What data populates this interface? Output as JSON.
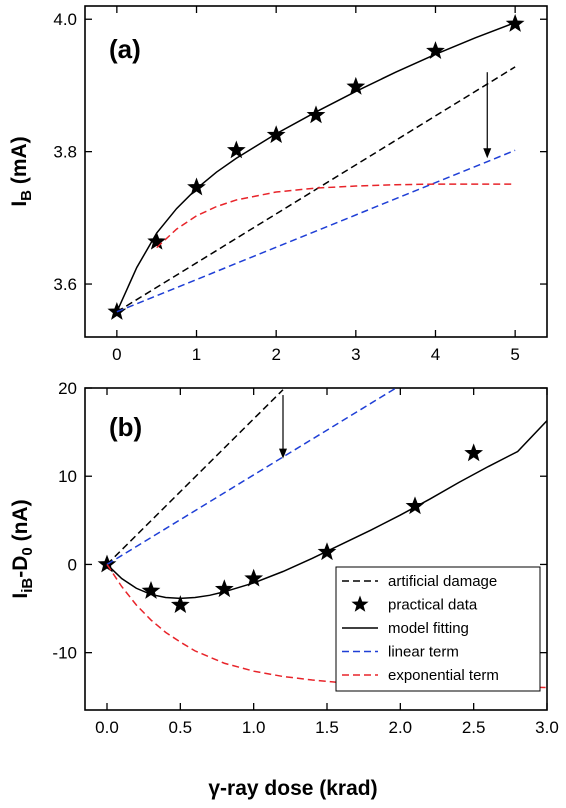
{
  "xlabel": "γ-ray dose (krad)",
  "chart_data": [
    {
      "type": "line",
      "panel": "(a)",
      "ylabel_main": "I",
      "ylabel_sub": "B",
      "ylabel_unit": " (mA)",
      "xlim": [
        -0.4,
        5.4
      ],
      "ylim": [
        3.52,
        4.02
      ],
      "x_ticks": [
        0,
        1,
        2,
        3,
        4,
        5
      ],
      "x_tick_labels": [
        "0",
        "1",
        "2",
        "3",
        "4",
        "5"
      ],
      "y_ticks": [
        3.6,
        3.8,
        4.0
      ],
      "y_tick_labels": [
        "3.6",
        "3.8",
        "4.0"
      ],
      "grid": false,
      "legend": "none",
      "annotation_arrow": {
        "x": 4.65,
        "y_from": 3.92,
        "y_to": 3.79
      },
      "series": [
        {
          "role": "practical",
          "color": "#000000",
          "style": "star",
          "x": [
            0,
            0.5,
            1,
            1.5,
            2,
            2.5,
            3,
            4,
            5
          ],
          "y": [
            3.558,
            3.664,
            3.746,
            3.802,
            3.825,
            3.855,
            3.898,
            3.952,
            3.993
          ]
        },
        {
          "role": "model",
          "color": "#000000",
          "style": "solid",
          "x": [
            0,
            0.25,
            0.5,
            0.75,
            1,
            1.25,
            1.5,
            2,
            2.5,
            3,
            3.5,
            4,
            4.5,
            5
          ],
          "y": [
            3.558,
            3.625,
            3.677,
            3.714,
            3.744,
            3.769,
            3.79,
            3.827,
            3.86,
            3.891,
            3.92,
            3.947,
            3.972,
            3.995
          ]
        },
        {
          "role": "artificial",
          "color": "#000000",
          "style": "dashed",
          "x": [
            0,
            5
          ],
          "y": [
            3.558,
            3.928
          ]
        },
        {
          "role": "linear",
          "color": "#1f3fd6",
          "style": "dashed",
          "x": [
            0,
            5
          ],
          "y": [
            3.558,
            3.802
          ]
        },
        {
          "role": "exponential",
          "color": "#e8242a",
          "style": "dashed",
          "x": [
            0.5,
            0.75,
            1,
            1.25,
            1.5,
            2,
            2.5,
            3,
            3.5,
            4,
            4.5,
            5
          ],
          "y": [
            3.655,
            3.683,
            3.703,
            3.717,
            3.727,
            3.739,
            3.745,
            3.748,
            3.75,
            3.751,
            3.751,
            3.751
          ]
        }
      ]
    },
    {
      "type": "line",
      "panel": "(b)",
      "ylabel_main": "I",
      "ylabel_sub": "iB",
      "ylabel_mid": "-D",
      "ylabel_sub2": "0",
      "ylabel_unit": " (nA)",
      "xlim": [
        -0.15,
        3.0
      ],
      "ylim": [
        -16.5,
        20
      ],
      "x_ticks": [
        0,
        0.5,
        1.0,
        1.5,
        2.0,
        2.5,
        3.0
      ],
      "x_tick_labels": [
        "0.0",
        "0.5",
        "1.0",
        "1.5",
        "2.0",
        "2.5",
        "3.0"
      ],
      "y_ticks": [
        -10,
        0,
        10,
        20
      ],
      "y_tick_labels": [
        "-10",
        "0",
        "10",
        "20"
      ],
      "grid": false,
      "legend": "bottom-right",
      "annotation_arrow": {
        "x": 1.2,
        "y_from": 19.2,
        "y_to": 12.0
      },
      "series": [
        {
          "role": "artificial",
          "name": "artificial damage",
          "color": "#000000",
          "style": "dashed",
          "x": [
            0,
            1.2
          ],
          "y": [
            0,
            19.8
          ]
        },
        {
          "role": "practical",
          "name": "practical data",
          "color": "#000000",
          "style": "star",
          "x": [
            0,
            0.3,
            0.5,
            0.8,
            1.0,
            1.5,
            2.1,
            2.5
          ],
          "y": [
            0,
            -3.0,
            -4.6,
            -2.8,
            -1.6,
            1.4,
            6.6,
            12.6
          ]
        },
        {
          "role": "model",
          "name": "model fitting",
          "color": "#000000",
          "style": "solid",
          "x": [
            0,
            0.1,
            0.2,
            0.3,
            0.4,
            0.5,
            0.6,
            0.7,
            0.8,
            1.0,
            1.2,
            1.4,
            1.6,
            1.8,
            2.0,
            2.2,
            2.4,
            2.6,
            2.8,
            3.0
          ],
          "y": [
            0,
            -1.6,
            -2.7,
            -3.4,
            -3.75,
            -3.85,
            -3.75,
            -3.5,
            -3.1,
            -2.1,
            -0.8,
            0.7,
            2.3,
            3.9,
            5.6,
            7.4,
            9.3,
            11.1,
            12.8,
            16.3
          ]
        },
        {
          "role": "linear",
          "name": "linear term",
          "color": "#1f3fd6",
          "style": "dashed",
          "x": [
            0,
            2.0
          ],
          "y": [
            0,
            20.3
          ]
        },
        {
          "role": "exponential",
          "name": "exponential term",
          "color": "#e8242a",
          "style": "dashed",
          "x": [
            0,
            0.1,
            0.2,
            0.3,
            0.4,
            0.5,
            0.6,
            0.8,
            1.0,
            1.2,
            1.4,
            1.6,
            1.8,
            2.0,
            2.2,
            2.4,
            2.6,
            2.8,
            3.0
          ],
          "y": [
            0,
            -2.5,
            -4.6,
            -6.3,
            -7.7,
            -8.8,
            -9.8,
            -11.2,
            -12.1,
            -12.7,
            -13.1,
            -13.4,
            -13.6,
            -13.7,
            -13.75,
            -13.8,
            -13.85,
            -13.9,
            -13.95
          ]
        }
      ]
    }
  ]
}
